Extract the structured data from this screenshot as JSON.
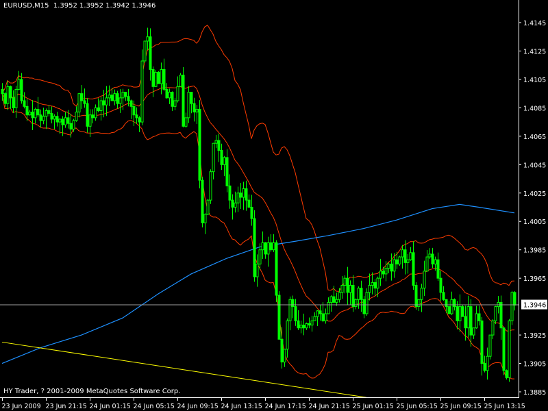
{
  "header": {
    "symbol_timeframe": "EURUSD,M15",
    "ohlc_readout": "1.3952 1.3952 1.3942 1.3946"
  },
  "footer": {
    "copyright": "HY Trader, ? 2001-2009 MetaQuotes Software Corp."
  },
  "colors": {
    "background": "#000000",
    "axis": "#FFFFFF",
    "candle": "#00FF00",
    "bollinger_bands": "#FF3C00",
    "moving_average": "#1E90FF",
    "trendline": "#FFFF00",
    "current_price_line": "#A0A0A0"
  },
  "chart_data": {
    "type": "candlestick",
    "symbol": "EURUSD",
    "timeframe": "M15",
    "ylim": [
      1.3885,
      1.4145
    ],
    "grid": false,
    "y_tick_labels": [
      "1.4145",
      "1.4125",
      "1.4105",
      "1.4085",
      "1.4065",
      "1.4045",
      "1.4025",
      "1.4005",
      "1.3985",
      "1.3965",
      "1.3925",
      "1.3905",
      "1.3885"
    ],
    "x_tick_labels": [
      {
        "bar": 0,
        "label": "23 Jun 2009"
      },
      {
        "bar": 16,
        "label": "23 Jun 21:15"
      },
      {
        "bar": 32,
        "label": "24 Jun 01:15"
      },
      {
        "bar": 48,
        "label": "24 Jun 05:15"
      },
      {
        "bar": 64,
        "label": "24 Jun 09:15"
      },
      {
        "bar": 80,
        "label": "24 Jun 13:15"
      },
      {
        "bar": 96,
        "label": "24 Jun 17:15"
      },
      {
        "bar": 112,
        "label": "24 Jun 21:15"
      },
      {
        "bar": 128,
        "label": "25 Jun 01:15"
      },
      {
        "bar": 144,
        "label": "25 Jun 05:15"
      },
      {
        "bar": 160,
        "label": "25 Jun 09:15"
      },
      {
        "bar": 176,
        "label": "25 Jun 13:15"
      }
    ],
    "current_price": "1.3946",
    "close": [
      1.4095,
      1.4088,
      1.41,
      1.4092,
      1.4085,
      1.4098,
      1.4105,
      1.409,
      1.4086,
      1.408,
      1.4082,
      1.4078,
      1.4084,
      1.408,
      1.4076,
      1.4079,
      1.4083,
      1.4081,
      1.4077,
      1.4079,
      1.4075,
      1.4077,
      1.4073,
      1.4078,
      1.4074,
      1.407,
      1.4076,
      1.4082,
      1.4095,
      1.409,
      1.4088,
      1.4072,
      1.408,
      1.4078,
      1.4085,
      1.4083,
      1.409,
      1.4087,
      1.4092,
      1.4094,
      1.409,
      1.4095,
      1.4088,
      1.4092,
      1.4096,
      1.4093,
      1.409,
      1.4086,
      1.408,
      1.4078,
      1.4075,
      1.4118,
      1.4132,
      1.4135,
      1.4112,
      1.41,
      1.411,
      1.4102,
      1.4112,
      1.4098,
      1.4092,
      1.4096,
      1.4086,
      1.409,
      1.41,
      1.4108,
      1.4072,
      1.4078,
      1.4096,
      1.4088,
      1.4082,
      1.4084,
      1.4034,
      1.4004,
      1.401,
      1.402,
      1.404,
      1.406,
      1.4062,
      1.4055,
      1.4045,
      1.405,
      1.403,
      1.402,
      1.4015,
      1.4018,
      1.4025,
      1.4022,
      1.4028,
      1.402,
      1.4015,
      1.4007,
      1.3966,
      1.3975,
      1.3985,
      1.399,
      1.3982,
      1.399,
      1.3985,
      1.399,
      1.3953,
      1.3922,
      1.3906,
      1.3915,
      1.3935,
      1.395,
      1.3945,
      1.3935,
      1.393,
      1.3932,
      1.393,
      1.3933,
      1.3932,
      1.3935,
      1.3938,
      1.3942,
      1.394,
      1.3935,
      1.394,
      1.3948,
      1.3952,
      1.3948,
      1.395,
      1.3955,
      1.396,
      1.3965,
      1.3955,
      1.396,
      1.3945,
      1.395,
      1.3958,
      1.395,
      1.394,
      1.3955,
      1.396,
      1.3962,
      1.3958,
      1.3965,
      1.397,
      1.3968,
      1.3972,
      1.3975,
      1.397,
      1.3978,
      1.3975,
      1.398,
      1.3985,
      1.3976,
      1.3978,
      1.3983,
      1.396,
      1.3945,
      1.395,
      1.3958,
      1.397,
      1.398,
      1.3982,
      1.3975,
      1.3978,
      1.3965,
      1.3955,
      1.395,
      1.3945,
      1.394,
      1.395,
      1.3945,
      1.3935,
      1.3945,
      1.3938,
      1.393,
      1.3945,
      1.3925,
      1.393,
      1.394,
      1.3935,
      1.3905,
      1.39,
      1.391,
      1.3925,
      1.3935,
      1.3945,
      1.3948,
      1.393,
      1.39,
      1.3895,
      1.3935,
      1.3955,
      1.3946
    ],
    "moving_average": [
      {
        "bar": 0,
        "value": 1.3905
      },
      {
        "bar": 14,
        "value": 1.3916
      },
      {
        "bar": 29,
        "value": 1.3925
      },
      {
        "bar": 44,
        "value": 1.3937
      },
      {
        "bar": 57,
        "value": 1.3954
      },
      {
        "bar": 69,
        "value": 1.3968
      },
      {
        "bar": 82,
        "value": 1.3979
      },
      {
        "bar": 94,
        "value": 1.3987
      },
      {
        "bar": 107,
        "value": 1.3991
      },
      {
        "bar": 119,
        "value": 1.3995
      },
      {
        "bar": 132,
        "value": 1.4
      },
      {
        "bar": 144,
        "value": 1.4006
      },
      {
        "bar": 157,
        "value": 1.4014
      },
      {
        "bar": 167,
        "value": 1.4017
      },
      {
        "bar": 174,
        "value": 1.4015
      },
      {
        "bar": 187,
        "value": 1.4011
      }
    ],
    "trendline": [
      {
        "bar": 0,
        "value": 1.392
      },
      {
        "bar": 133,
        "value": 1.3881
      }
    ],
    "bollinger": {
      "period": 20,
      "deviation": 2
    }
  }
}
